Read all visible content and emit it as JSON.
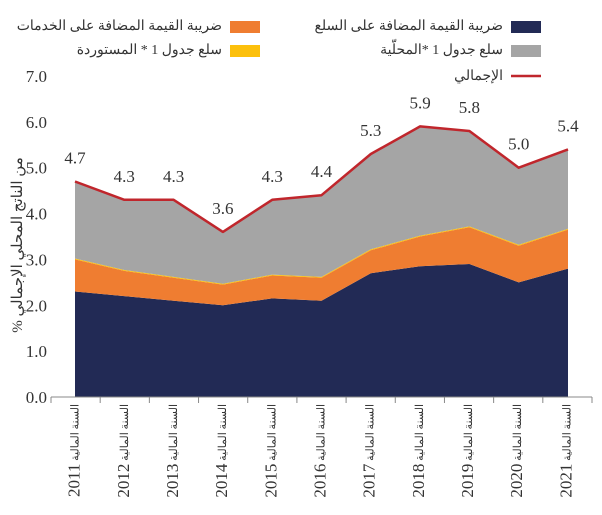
{
  "chart_data": {
    "type": "area",
    "title": "",
    "ylabel": "% من الناتج المحلي الإجمالي",
    "xlabel": "",
    "ylim": [
      0,
      7
    ],
    "yticks": [
      "0.0",
      "1.0",
      "2.0",
      "3.0",
      "4.0",
      "5.0",
      "6.0",
      "7.0"
    ],
    "year_prefix": "السنة المالية",
    "categories": [
      "2011",
      "2012",
      "2013",
      "2014",
      "2015",
      "2016",
      "2017",
      "2018",
      "2019",
      "2020",
      "2021"
    ],
    "series": [
      {
        "name": "ضريبة القيمة المضافة على السلع",
        "type": "area",
        "color": "#222a55",
        "values": [
          2.3,
          2.2,
          2.1,
          2.0,
          2.15,
          2.1,
          2.7,
          2.85,
          2.9,
          2.5,
          2.8
        ]
      },
      {
        "name": "ضريبة القيمة المضافة على الخدمات",
        "type": "area",
        "color": "#ef7d31",
        "values": [
          0.7,
          0.55,
          0.5,
          0.45,
          0.5,
          0.5,
          0.5,
          0.65,
          0.8,
          0.8,
          0.85
        ]
      },
      {
        "name": "سلع جدول 1 * المستوردة",
        "type": "area",
        "color": "#fcc00c",
        "values": [
          0.02,
          0.02,
          0.02,
          0.02,
          0.02,
          0.02,
          0.02,
          0.02,
          0.02,
          0.02,
          0.02
        ]
      },
      {
        "name": "سلع جدول 1 *المحلّية",
        "type": "area",
        "color": "#a5a5a5",
        "values": [
          1.68,
          1.53,
          1.68,
          1.13,
          1.63,
          1.78,
          2.08,
          2.38,
          2.08,
          1.68,
          1.73
        ]
      },
      {
        "name": "الإجمالي",
        "type": "line",
        "color": "#c0262c",
        "values": [
          4.7,
          4.3,
          4.3,
          3.6,
          4.3,
          4.4,
          5.3,
          5.9,
          5.8,
          5.0,
          5.4
        ],
        "labels": [
          "4.7",
          "4.3",
          "4.3",
          "3.6",
          "4.3",
          "4.4",
          "5.3",
          "5.9",
          "5.8",
          "5.0",
          "5.4"
        ]
      }
    ],
    "legend": [
      {
        "label": "ضريبة القيمة المضافة على السلع",
        "color": "#222a55",
        "kind": "box"
      },
      {
        "label": "ضريبة القيمة المضافة على الخدمات",
        "color": "#ef7d31",
        "kind": "box"
      },
      {
        "label": "سلع جدول 1 *المحلّية",
        "color": "#a5a5a5",
        "kind": "box"
      },
      {
        "label": "سلع جدول 1 * المستوردة",
        "color": "#fcc00c",
        "kind": "box"
      },
      {
        "label": "الإجمالي",
        "color": "#c0262c",
        "kind": "line"
      }
    ]
  }
}
